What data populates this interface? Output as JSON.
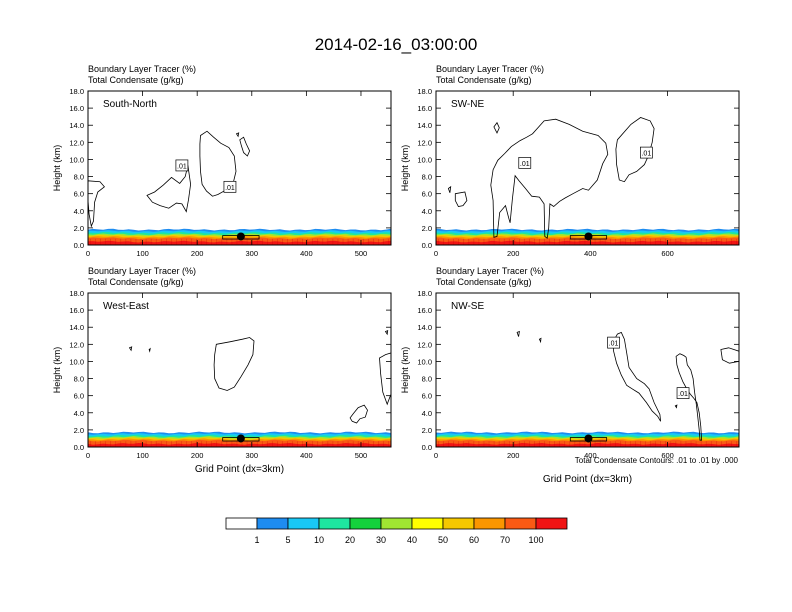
{
  "figure": {
    "title": "2014-02-16_03:00:00",
    "contour_note": "Total Condensate Contours: .01 to .01 by .000",
    "colorbar": {
      "colors": [
        "#ffffff",
        "#1e8cf0",
        "#19c8f5",
        "#1ee6a0",
        "#14d23c",
        "#a0e632",
        "#ffff00",
        "#f5c800",
        "#fa9600",
        "#fa5a14",
        "#f01414"
      ],
      "labels": [
        "1",
        "5",
        "10",
        "20",
        "30",
        "40",
        "50",
        "60",
        "70",
        "100"
      ]
    }
  },
  "chart_data": [
    {
      "type": "heatmap",
      "panel_label": "South-North",
      "subtitle_lines": [
        "Boundary Layer Tracer   (%)",
        "Total Condensate   (g/kg)"
      ],
      "xlabel": "",
      "ylabel": "Height (km)",
      "xlim": [
        0,
        555
      ],
      "ylim": [
        0,
        18
      ],
      "x_ticks": [
        0,
        100,
        200,
        300,
        400,
        500
      ],
      "y_ticks": [
        0,
        2,
        4,
        6,
        8,
        10,
        12,
        14,
        16,
        18
      ],
      "y_tick_labels": [
        "0.0",
        "2.0",
        "4.0",
        "6.0",
        "8.0",
        "10.0",
        "12.0",
        "14.0",
        "16.0",
        "18.0"
      ],
      "contour_labels": [
        {
          "text": ".01",
          "x": 172,
          "y": 9.3
        },
        {
          "text": ".01",
          "x": 260,
          "y": 6.8
        }
      ],
      "marker": {
        "x": 280,
        "y": 1.0
      },
      "tracer_layer_top_km": 1.8
    },
    {
      "type": "heatmap",
      "panel_label": "SW-NE",
      "subtitle_lines": [
        "Boundary Layer Tracer   (%)",
        "Total Condensate   (g/kg)"
      ],
      "xlabel": "",
      "ylabel": "Height (km)",
      "xlim": [
        0,
        785
      ],
      "ylim": [
        0,
        18
      ],
      "x_ticks": [
        0,
        200,
        400,
        600
      ],
      "y_ticks": [
        0,
        2,
        4,
        6,
        8,
        10,
        12,
        14,
        16,
        18
      ],
      "y_tick_labels": [
        "0.0",
        "2.0",
        "4.0",
        "6.0",
        "8.0",
        "10.0",
        "12.0",
        "14.0",
        "16.0",
        "18.0"
      ],
      "contour_labels": [
        {
          "text": ".01",
          "x": 230,
          "y": 9.6
        },
        {
          "text": ".01",
          "x": 545,
          "y": 10.8
        }
      ],
      "marker": {
        "x": 395,
        "y": 1.0
      },
      "tracer_layer_top_km": 1.8
    },
    {
      "type": "heatmap",
      "panel_label": "West-East",
      "subtitle_lines": [
        "Boundary Layer Tracer   (%)",
        "Total Condensate   (g/kg)"
      ],
      "xlabel": "Grid Point (dx=3km)",
      "ylabel": "Height (km)",
      "xlim": [
        0,
        555
      ],
      "ylim": [
        0,
        18
      ],
      "x_ticks": [
        0,
        100,
        200,
        300,
        400,
        500
      ],
      "y_ticks": [
        0,
        2,
        4,
        6,
        8,
        10,
        12,
        14,
        16,
        18
      ],
      "y_tick_labels": [
        "0.0",
        "2.0",
        "4.0",
        "6.0",
        "8.0",
        "10.0",
        "12.0",
        "14.0",
        "16.0",
        "18.0"
      ],
      "contour_labels": [],
      "marker": {
        "x": 280,
        "y": 1.0
      },
      "tracer_layer_top_km": 1.7
    },
    {
      "type": "heatmap",
      "panel_label": "NW-SE",
      "subtitle_lines": [
        "Boundary Layer Tracer   (%)",
        "Total Condensate   (g/kg)"
      ],
      "xlabel": "Grid Point (dx=3km)",
      "ylabel": "Height (km)",
      "xlim": [
        0,
        785
      ],
      "ylim": [
        0,
        18
      ],
      "x_ticks": [
        0,
        200,
        400,
        600
      ],
      "y_ticks": [
        0,
        2,
        4,
        6,
        8,
        10,
        12,
        14,
        16,
        18
      ],
      "y_tick_labels": [
        "0.0",
        "2.0",
        "4.0",
        "6.0",
        "8.0",
        "10.0",
        "12.0",
        "14.0",
        "16.0",
        "18.0"
      ],
      "contour_labels": [
        {
          "text": ".01",
          "x": 460,
          "y": 12.2
        },
        {
          "text": ".01",
          "x": 640,
          "y": 6.3
        }
      ],
      "marker": {
        "x": 395,
        "y": 1.0
      },
      "tracer_layer_top_km": 1.7
    }
  ]
}
